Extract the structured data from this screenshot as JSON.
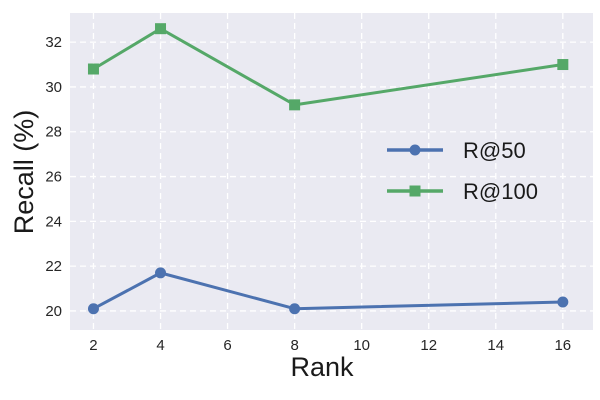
{
  "figure": {
    "background": "#FFFFFF",
    "plot_background": "#EAEAF2",
    "grid_color": "#FFFFFF"
  },
  "chart_data": {
    "type": "line",
    "title": "",
    "xlabel": "Rank",
    "ylabel": "Recall (%)",
    "x": [
      2,
      4,
      8,
      16
    ],
    "series": [
      {
        "name": "R@50",
        "color": "#4C72B0",
        "marker": "circle",
        "values": [
          20.1,
          21.7,
          20.1,
          20.4
        ]
      },
      {
        "name": "R@100",
        "color": "#55A868",
        "marker": "square",
        "values": [
          30.8,
          32.6,
          29.2,
          31.0
        ]
      }
    ],
    "x_ticks": [
      2,
      4,
      6,
      8,
      10,
      12,
      14,
      16
    ],
    "y_ticks": [
      20,
      22,
      24,
      26,
      28,
      30,
      32
    ],
    "xlim": [
      1.3,
      16.9
    ],
    "ylim": [
      19.15,
      33.3
    ],
    "grid": true,
    "grid_style": "dashed",
    "legend_position": "center-right",
    "legend_frame": false
  }
}
